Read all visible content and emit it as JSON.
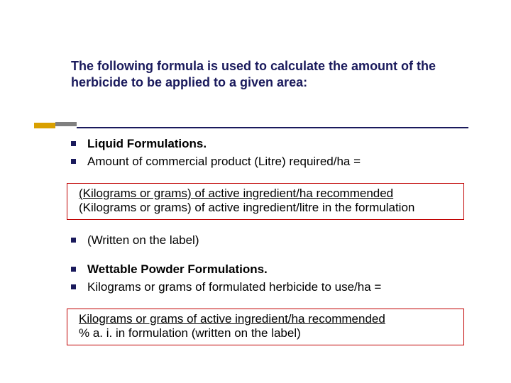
{
  "colors": {
    "title_text": "#1a1a5c",
    "body_text": "#000000",
    "bullet_marker": "#1a1a5c",
    "accent_gold": "#d9a000",
    "accent_gray": "#808080",
    "underline": "#1a1a5c",
    "box_border": "#c00000",
    "background": "#ffffff"
  },
  "typography": {
    "title_fontsize": 18,
    "title_weight": "bold",
    "body_fontsize": 17,
    "font_family": "Verdana"
  },
  "title": "The following formula is used to calculate the amount of the herbicide to be applied to a given area:",
  "bullets": {
    "b1": "Liquid Formulations.",
    "b2": "Amount of commercial product (Litre) required/ha =",
    "b3": "(Written on the label)",
    "b4": "Wettable Powder Formulations.",
    "b5": "Kilograms or grams of formulated herbicide to use/ha ="
  },
  "formula1": {
    "numerator": "(Kilograms or grams) of active ingredient/ha recommended",
    "denominator": "(Kilograms or grams) of active ingredient/litre in the formulation"
  },
  "formula2": {
    "numerator": "Kilograms or grams of active ingredient/ha recommended",
    "denominator": "% a. i. in formulation (written on the label)"
  }
}
